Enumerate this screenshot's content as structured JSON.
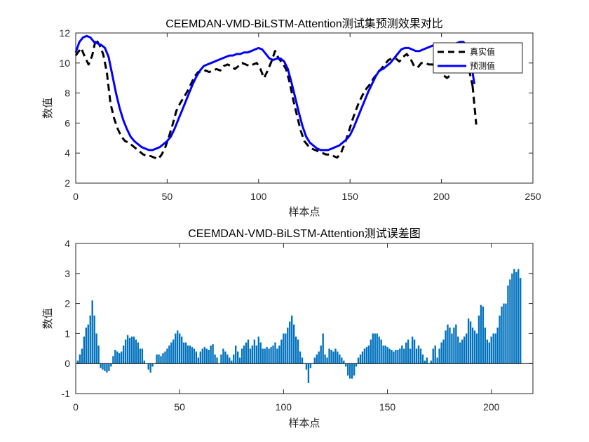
{
  "chart_data": [
    {
      "type": "line",
      "title": "CEEMDAN-VMD-BiLSTM-Attention测试集预测效果对比",
      "xlabel": "样本点",
      "ylabel": "数值",
      "xlim": [
        0,
        250
      ],
      "ylim": [
        2,
        12
      ],
      "xticks": [
        "0",
        "50",
        "100",
        "150",
        "200",
        "250"
      ],
      "yticks": [
        "2",
        "4",
        "6",
        "8",
        "10",
        "12"
      ],
      "legend_position": "top-right",
      "series": [
        {
          "name": "真实值",
          "color": "#000000",
          "style": "dashed",
          "x": [
            0,
            3,
            5,
            7,
            9,
            11,
            13,
            15,
            17,
            19,
            21,
            23,
            25,
            27,
            29,
            31,
            33,
            35,
            37,
            39,
            41,
            43,
            45,
            47,
            49,
            51,
            53,
            55,
            57,
            59,
            61,
            63,
            65,
            67,
            69,
            71,
            73,
            75,
            77,
            79,
            81,
            83,
            85,
            87,
            89,
            91,
            93,
            95,
            97,
            99,
            101,
            103,
            105,
            107,
            109,
            111,
            113,
            115,
            117,
            119,
            121,
            123,
            125,
            127,
            129,
            131,
            133,
            135,
            137,
            139,
            141,
            143,
            145,
            147,
            149,
            151,
            153,
            155,
            157,
            159,
            161,
            163,
            165,
            167,
            169,
            171,
            173,
            175,
            177,
            179,
            181,
            183,
            185,
            187,
            189,
            191,
            193,
            195,
            197,
            199,
            201,
            203,
            205,
            207,
            209,
            211,
            213,
            215,
            217
          ],
          "values": [
            10.5,
            11.0,
            10.4,
            9.9,
            10.5,
            11.6,
            11.2,
            10.6,
            9.4,
            7.3,
            6.3,
            5.6,
            5.1,
            4.8,
            4.7,
            4.5,
            4.3,
            4.1,
            3.9,
            3.8,
            3.8,
            3.7,
            3.6,
            3.9,
            4.4,
            5.1,
            5.9,
            6.8,
            7.3,
            7.7,
            8.1,
            8.6,
            9.1,
            9.4,
            9.4,
            9.5,
            9.4,
            9.5,
            9.6,
            9.5,
            9.8,
            9.9,
            9.8,
            9.6,
            9.8,
            10.0,
            9.9,
            9.8,
            9.9,
            10.0,
            9.6,
            9.0,
            9.5,
            10.1,
            10.8,
            10.3,
            10.0,
            9.6,
            8.7,
            7.5,
            6.5,
            5.5,
            4.8,
            4.5,
            4.3,
            4.2,
            4.1,
            4.0,
            3.9,
            3.9,
            3.8,
            3.7,
            4.0,
            4.6,
            5.3,
            6.1,
            6.8,
            7.4,
            7.9,
            8.3,
            8.6,
            9.0,
            9.3,
            9.6,
            9.9,
            10.2,
            10.3,
            10.3,
            10.1,
            10.4,
            10.6,
            10.3,
            9.8,
            9.7,
            10.0,
            10.0,
            9.9,
            9.9,
            9.8,
            9.6,
            9.2,
            9.0,
            9.2,
            9.6,
            10.0,
            10.2,
            10.4,
            9.6,
            8.5
          ],
          "tail": {
            "x": [
              217,
              219
            ],
            "values": [
              8.5,
              5.9
            ]
          }
        },
        {
          "name": "预测值",
          "color": "#0000ff",
          "style": "solid",
          "x": [
            0,
            2,
            4,
            6,
            8,
            10,
            12,
            14,
            16,
            18,
            20,
            22,
            24,
            26,
            28,
            30,
            32,
            34,
            36,
            38,
            40,
            42,
            44,
            46,
            48,
            50,
            52,
            54,
            56,
            58,
            60,
            62,
            64,
            66,
            68,
            70,
            72,
            74,
            76,
            78,
            80,
            82,
            84,
            86,
            88,
            90,
            92,
            94,
            96,
            98,
            100,
            102,
            104,
            106,
            108,
            110,
            112,
            114,
            116,
            118,
            120,
            122,
            124,
            126,
            128,
            130,
            132,
            134,
            136,
            138,
            140,
            142,
            144,
            146,
            148,
            150,
            152,
            154,
            156,
            158,
            160,
            162,
            164,
            166,
            168,
            170,
            172,
            174,
            176,
            178,
            180,
            182,
            184,
            186,
            188,
            190,
            192,
            194,
            196,
            198,
            200,
            202,
            204,
            206,
            208,
            210,
            212,
            214,
            216,
            218
          ],
          "values": [
            10.7,
            11.4,
            11.7,
            11.8,
            11.7,
            11.4,
            11.3,
            11.2,
            11.0,
            10.4,
            9.2,
            8.0,
            7.0,
            6.2,
            5.6,
            5.1,
            4.8,
            4.6,
            4.4,
            4.3,
            4.2,
            4.2,
            4.3,
            4.4,
            4.6,
            4.8,
            5.1,
            5.6,
            6.2,
            6.8,
            7.4,
            8.0,
            8.6,
            9.1,
            9.5,
            9.8,
            9.9,
            10.0,
            10.1,
            10.2,
            10.3,
            10.4,
            10.5,
            10.5,
            10.6,
            10.6,
            10.7,
            10.7,
            10.8,
            10.9,
            11.0,
            10.9,
            10.6,
            10.3,
            10.2,
            10.3,
            10.3,
            10.1,
            9.6,
            8.7,
            7.7,
            6.7,
            5.8,
            5.1,
            4.7,
            4.5,
            4.3,
            4.2,
            4.2,
            4.2,
            4.3,
            4.4,
            4.5,
            4.7,
            4.9,
            5.2,
            5.7,
            6.3,
            6.9,
            7.5,
            8.1,
            8.6,
            9.1,
            9.5,
            9.6,
            9.8,
            10.0,
            10.3,
            10.6,
            10.9,
            11.0,
            11.0,
            10.9,
            10.8,
            10.8,
            10.9,
            11.0,
            11.1,
            11.2,
            11.1,
            10.9,
            11.0,
            11.1,
            11.2,
            11.3,
            11.4,
            11.4,
            11.1,
            10.2,
            8.6
          ]
        }
      ]
    },
    {
      "type": "bar",
      "title": "CEEMDAN-VMD-BiLSTM-Attention测试误差图",
      "xlabel": "样本点",
      "ylabel": "数值",
      "xlim": [
        0,
        220
      ],
      "ylim": [
        -1,
        4
      ],
      "xticks": [
        "0",
        "50",
        "100",
        "150",
        "200"
      ],
      "yticks": [
        "-1",
        "0",
        "1",
        "2",
        "3",
        "4"
      ],
      "color": "#0072bd",
      "x_start": 1,
      "values": [
        0.1,
        0.3,
        0.5,
        0.9,
        1.2,
        1.3,
        1.6,
        2.1,
        1.6,
        1.0,
        0.6,
        -0.15,
        -0.2,
        -0.25,
        -0.3,
        -0.25,
        -0.1,
        0.25,
        0.45,
        0.4,
        0.35,
        0.4,
        0.6,
        0.8,
        0.95,
        0.85,
        0.9,
        0.9,
        0.8,
        0.7,
        0.5,
        0.5,
        0.1,
        0.0,
        -0.2,
        -0.3,
        -0.1,
        0.0,
        0.3,
        0.3,
        0.25,
        0.35,
        0.4,
        0.5,
        0.6,
        0.7,
        0.8,
        1.0,
        1.1,
        1.0,
        0.9,
        0.7,
        0.7,
        0.6,
        0.6,
        0.55,
        0.5,
        0.4,
        0.2,
        0.4,
        0.5,
        0.55,
        0.5,
        0.45,
        0.6,
        0.65,
        0.3,
        0.2,
        0.0,
        0.3,
        0.5,
        0.4,
        0.3,
        0.2,
        0.1,
        0.3,
        0.6,
        0.4,
        0.2,
        0.5,
        0.6,
        0.7,
        0.8,
        0.5,
        0.6,
        0.8,
        0.6,
        0.9,
        0.7,
        0.5,
        0.5,
        0.55,
        0.5,
        0.55,
        0.6,
        0.7,
        0.5,
        0.6,
        0.8,
        1.0,
        1.0,
        1.2,
        1.4,
        1.6,
        1.3,
        0.9,
        0.8,
        0.4,
        0.2,
        0.0,
        -0.2,
        -0.65,
        -0.15,
        0.0,
        0.2,
        0.3,
        0.4,
        0.6,
        1.0,
        0.3,
        0.2,
        0.5,
        0.45,
        0.4,
        0.5,
        0.4,
        0.3,
        0.2,
        0.1,
        -0.1,
        -0.4,
        -0.5,
        -0.5,
        -0.4,
        -0.1,
        0.2,
        0.3,
        0.4,
        0.5,
        0.55,
        0.6,
        0.8,
        1.0,
        1.0,
        1.0,
        0.9,
        0.8,
        0.6,
        0.6,
        0.55,
        0.5,
        0.45,
        0.4,
        0.45,
        0.45,
        0.5,
        0.6,
        0.5,
        0.7,
        0.8,
        0.5,
        0.9,
        0.8,
        0.5,
        0.6,
        0.5,
        0.3,
        0.1,
        0.2,
        0.0,
        0.1,
        0.5,
        0.6,
        0.2,
        0.5,
        0.7,
        0.8,
        1.1,
        1.3,
        1.2,
        1.0,
        1.2,
        1.3,
        0.9,
        0.7,
        0.8,
        0.9,
        1.0,
        1.5,
        1.4,
        1.2,
        1.1,
        1.0,
        1.6,
        1.95,
        1.9,
        1.2,
        0.8,
        0.7,
        0.9,
        1.0,
        1.0,
        1.2,
        1.6,
        1.9,
        2.0,
        2.0,
        2.6,
        2.8,
        3.0,
        3.15,
        3.05,
        3.15,
        2.85
      ]
    }
  ]
}
